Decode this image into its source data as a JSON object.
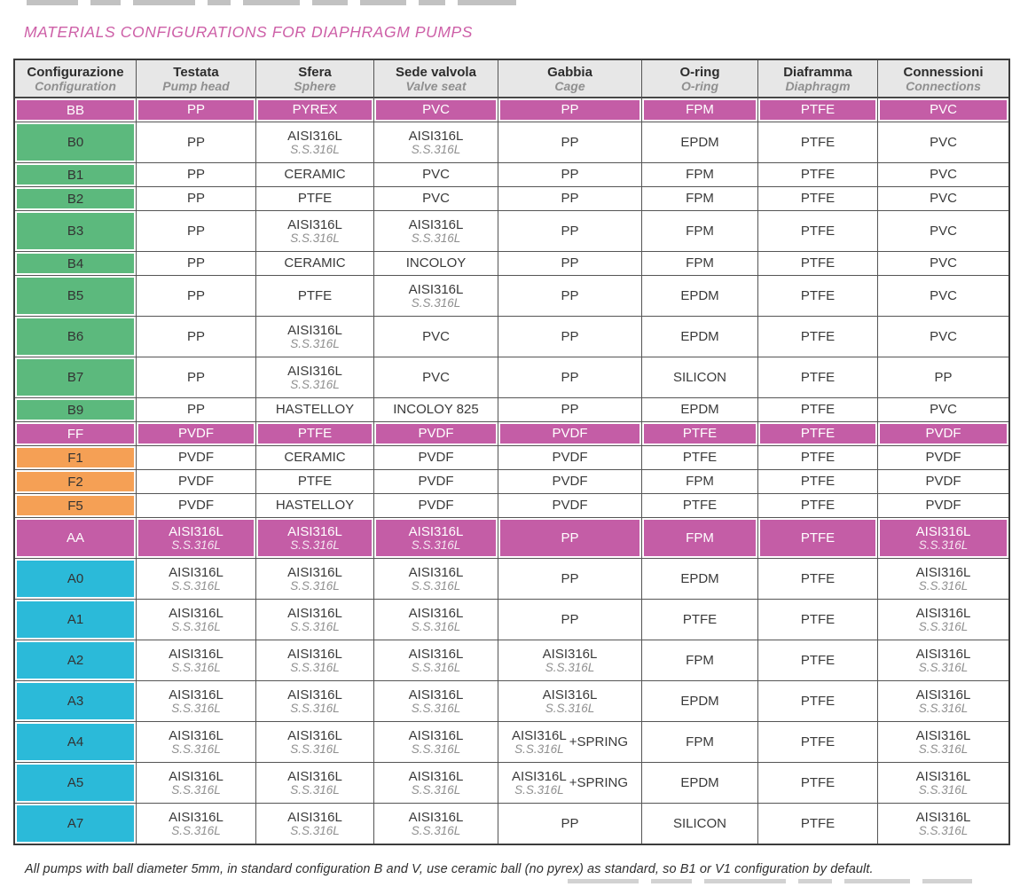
{
  "title": "MATERIALS CONFIGURATIONS FOR DIAPHRAGM PUMPS",
  "footnote": "All pumps with ball diameter 5mm, in standard configuration B and V, use ceramic ball (no pyrex) as standard, so B1 or V1 configuration by default.",
  "colors": {
    "magenta": "#c45da6",
    "green": "#5cb97d",
    "orange": "#f5a055",
    "cyan": "#2bbad9",
    "title_pink": "#cd5fa7",
    "header_gray": "#e7e7e7"
  },
  "table": {
    "columns": [
      {
        "it": "Configurazione",
        "en": "Configuration"
      },
      {
        "it": "Testata",
        "en": "Pump head"
      },
      {
        "it": "Sfera",
        "en": "Sphere"
      },
      {
        "it": "Sede valvola",
        "en": "Valve seat"
      },
      {
        "it": "Gabbia",
        "en": "Cage"
      },
      {
        "it": "O-ring",
        "en": "O-ring"
      },
      {
        "it": "Diaframma",
        "en": "Diaphragm"
      },
      {
        "it": "Connessioni",
        "en": "Connections"
      }
    ],
    "rows": [
      {
        "code": "BB",
        "group": true,
        "color": "magenta",
        "cells": [
          {
            "m": "PP"
          },
          {
            "m": "PYREX"
          },
          {
            "m": "PVC"
          },
          {
            "m": "PP"
          },
          {
            "m": "FPM"
          },
          {
            "m": "PTFE"
          },
          {
            "m": "PVC"
          }
        ]
      },
      {
        "code": "B0",
        "group": false,
        "color": "green",
        "cells": [
          {
            "m": "PP"
          },
          {
            "m": "AISI316L",
            "s": "S.S.316L"
          },
          {
            "m": "AISI316L",
            "s": "S.S.316L"
          },
          {
            "m": "PP"
          },
          {
            "m": "EPDM"
          },
          {
            "m": "PTFE"
          },
          {
            "m": "PVC"
          }
        ]
      },
      {
        "code": "B1",
        "group": false,
        "color": "green",
        "cells": [
          {
            "m": "PP"
          },
          {
            "m": "CERAMIC"
          },
          {
            "m": "PVC"
          },
          {
            "m": "PP"
          },
          {
            "m": "FPM"
          },
          {
            "m": "PTFE"
          },
          {
            "m": "PVC"
          }
        ]
      },
      {
        "code": "B2",
        "group": false,
        "color": "green",
        "cells": [
          {
            "m": "PP"
          },
          {
            "m": "PTFE"
          },
          {
            "m": "PVC"
          },
          {
            "m": "PP"
          },
          {
            "m": "FPM"
          },
          {
            "m": "PTFE"
          },
          {
            "m": "PVC"
          }
        ]
      },
      {
        "code": "B3",
        "group": false,
        "color": "green",
        "cells": [
          {
            "m": "PP"
          },
          {
            "m": "AISI316L",
            "s": "S.S.316L"
          },
          {
            "m": "AISI316L",
            "s": "S.S.316L"
          },
          {
            "m": "PP"
          },
          {
            "m": "FPM"
          },
          {
            "m": "PTFE"
          },
          {
            "m": "PVC"
          }
        ]
      },
      {
        "code": "B4",
        "group": false,
        "color": "green",
        "cells": [
          {
            "m": "PP"
          },
          {
            "m": "CERAMIC"
          },
          {
            "m": "INCOLOY"
          },
          {
            "m": "PP"
          },
          {
            "m": "FPM"
          },
          {
            "m": "PTFE"
          },
          {
            "m": "PVC"
          }
        ]
      },
      {
        "code": "B5",
        "group": false,
        "color": "green",
        "cells": [
          {
            "m": "PP"
          },
          {
            "m": "PTFE"
          },
          {
            "m": "AISI316L",
            "s": "S.S.316L"
          },
          {
            "m": "PP"
          },
          {
            "m": "EPDM"
          },
          {
            "m": "PTFE"
          },
          {
            "m": "PVC"
          }
        ]
      },
      {
        "code": "B6",
        "group": false,
        "color": "green",
        "cells": [
          {
            "m": "PP"
          },
          {
            "m": "AISI316L",
            "s": "S.S.316L"
          },
          {
            "m": "PVC"
          },
          {
            "m": "PP"
          },
          {
            "m": "EPDM"
          },
          {
            "m": "PTFE"
          },
          {
            "m": "PVC"
          }
        ]
      },
      {
        "code": "B7",
        "group": false,
        "color": "green",
        "cells": [
          {
            "m": "PP"
          },
          {
            "m": "AISI316L",
            "s": "S.S.316L"
          },
          {
            "m": "PVC"
          },
          {
            "m": "PP"
          },
          {
            "m": "SILICON"
          },
          {
            "m": "PTFE"
          },
          {
            "m": "PP"
          }
        ]
      },
      {
        "code": "B9",
        "group": false,
        "color": "green",
        "cells": [
          {
            "m": "PP"
          },
          {
            "m": "HASTELLOY"
          },
          {
            "m": "INCOLOY 825"
          },
          {
            "m": "PP"
          },
          {
            "m": "EPDM"
          },
          {
            "m": "PTFE"
          },
          {
            "m": "PVC"
          }
        ]
      },
      {
        "code": "FF",
        "group": true,
        "color": "magenta",
        "cells": [
          {
            "m": "PVDF"
          },
          {
            "m": "PTFE"
          },
          {
            "m": "PVDF"
          },
          {
            "m": "PVDF"
          },
          {
            "m": "PTFE"
          },
          {
            "m": "PTFE"
          },
          {
            "m": "PVDF"
          }
        ]
      },
      {
        "code": "F1",
        "group": false,
        "color": "orange",
        "cells": [
          {
            "m": "PVDF"
          },
          {
            "m": "CERAMIC"
          },
          {
            "m": "PVDF"
          },
          {
            "m": "PVDF"
          },
          {
            "m": "PTFE"
          },
          {
            "m": "PTFE"
          },
          {
            "m": "PVDF"
          }
        ]
      },
      {
        "code": "F2",
        "group": false,
        "color": "orange",
        "cells": [
          {
            "m": "PVDF"
          },
          {
            "m": "PTFE"
          },
          {
            "m": "PVDF"
          },
          {
            "m": "PVDF"
          },
          {
            "m": "FPM"
          },
          {
            "m": "PTFE"
          },
          {
            "m": "PVDF"
          }
        ]
      },
      {
        "code": "F5",
        "group": false,
        "color": "orange",
        "cells": [
          {
            "m": "PVDF"
          },
          {
            "m": "HASTELLOY"
          },
          {
            "m": "PVDF"
          },
          {
            "m": "PVDF"
          },
          {
            "m": "PTFE"
          },
          {
            "m": "PTFE"
          },
          {
            "m": "PVDF"
          }
        ]
      },
      {
        "code": "AA",
        "group": true,
        "color": "magenta",
        "cells": [
          {
            "m": "AISI316L",
            "s": "S.S.316L"
          },
          {
            "m": "AISI316L",
            "s": "S.S.316L"
          },
          {
            "m": "AISI316L",
            "s": "S.S.316L"
          },
          {
            "m": "PP"
          },
          {
            "m": "FPM"
          },
          {
            "m": "PTFE"
          },
          {
            "m": "AISI316L",
            "s": "S.S.316L"
          }
        ]
      },
      {
        "code": "A0",
        "group": false,
        "color": "cyan",
        "cells": [
          {
            "m": "AISI316L",
            "s": "S.S.316L"
          },
          {
            "m": "AISI316L",
            "s": "S.S.316L"
          },
          {
            "m": "AISI316L",
            "s": "S.S.316L"
          },
          {
            "m": "PP"
          },
          {
            "m": "EPDM"
          },
          {
            "m": "PTFE"
          },
          {
            "m": "AISI316L",
            "s": "S.S.316L"
          }
        ]
      },
      {
        "code": "A1",
        "group": false,
        "color": "cyan",
        "cells": [
          {
            "m": "AISI316L",
            "s": "S.S.316L"
          },
          {
            "m": "AISI316L",
            "s": "S.S.316L"
          },
          {
            "m": "AISI316L",
            "s": "S.S.316L"
          },
          {
            "m": "PP"
          },
          {
            "m": "PTFE"
          },
          {
            "m": "PTFE"
          },
          {
            "m": "AISI316L",
            "s": "S.S.316L"
          }
        ]
      },
      {
        "code": "A2",
        "group": false,
        "color": "cyan",
        "cells": [
          {
            "m": "AISI316L",
            "s": "S.S.316L"
          },
          {
            "m": "AISI316L",
            "s": "S.S.316L"
          },
          {
            "m": "AISI316L",
            "s": "S.S.316L"
          },
          {
            "m": "AISI316L",
            "s": "S.S.316L"
          },
          {
            "m": "FPM"
          },
          {
            "m": "PTFE"
          },
          {
            "m": "AISI316L",
            "s": "S.S.316L"
          }
        ]
      },
      {
        "code": "A3",
        "group": false,
        "color": "cyan",
        "cells": [
          {
            "m": "AISI316L",
            "s": "S.S.316L"
          },
          {
            "m": "AISI316L",
            "s": "S.S.316L"
          },
          {
            "m": "AISI316L",
            "s": "S.S.316L"
          },
          {
            "m": "AISI316L",
            "s": "S.S.316L"
          },
          {
            "m": "EPDM"
          },
          {
            "m": "PTFE"
          },
          {
            "m": "AISI316L",
            "s": "S.S.316L"
          }
        ]
      },
      {
        "code": "A4",
        "group": false,
        "color": "cyan",
        "cells": [
          {
            "m": "AISI316L",
            "s": "S.S.316L"
          },
          {
            "m": "AISI316L",
            "s": "S.S.316L"
          },
          {
            "m": "AISI316L",
            "s": "S.S.316L"
          },
          {
            "m": "AISI316L",
            "s": "S.S.316L",
            "x": "+SPRING"
          },
          {
            "m": "FPM"
          },
          {
            "m": "PTFE"
          },
          {
            "m": "AISI316L",
            "s": "S.S.316L"
          }
        ]
      },
      {
        "code": "A5",
        "group": false,
        "color": "cyan",
        "cells": [
          {
            "m": "AISI316L",
            "s": "S.S.316L"
          },
          {
            "m": "AISI316L",
            "s": "S.S.316L"
          },
          {
            "m": "AISI316L",
            "s": "S.S.316L"
          },
          {
            "m": "AISI316L",
            "s": "S.S.316L",
            "x": "+SPRING"
          },
          {
            "m": "EPDM"
          },
          {
            "m": "PTFE"
          },
          {
            "m": "AISI316L",
            "s": "S.S.316L"
          }
        ]
      },
      {
        "code": "A7",
        "group": false,
        "color": "cyan",
        "cells": [
          {
            "m": "AISI316L",
            "s": "S.S.316L"
          },
          {
            "m": "AISI316L",
            "s": "S.S.316L"
          },
          {
            "m": "AISI316L",
            "s": "S.S.316L"
          },
          {
            "m": "PP"
          },
          {
            "m": "SILICON"
          },
          {
            "m": "PTFE"
          },
          {
            "m": "AISI316L",
            "s": "S.S.316L"
          }
        ]
      }
    ]
  }
}
